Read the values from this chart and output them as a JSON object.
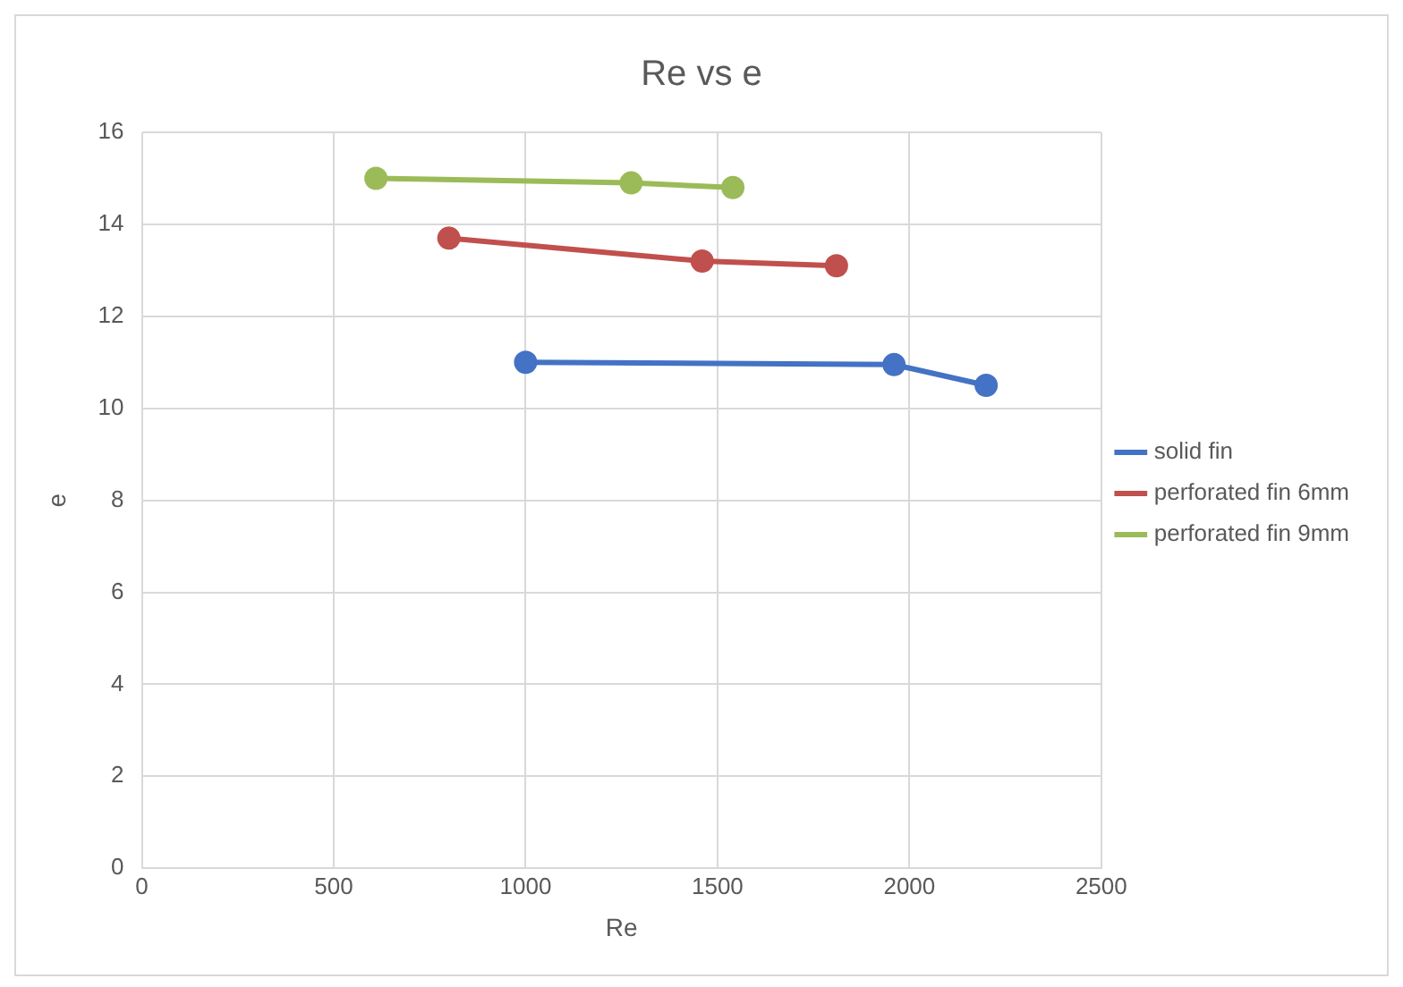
{
  "chart_data": {
    "type": "line",
    "title": "Re vs e",
    "xlabel": "Re",
    "ylabel": "e",
    "series": [
      {
        "name": "solid fin",
        "color": "#4472c4",
        "x": [
          1000,
          1960,
          2200
        ],
        "values": [
          11.0,
          10.95,
          10.5
        ]
      },
      {
        "name": "perforated fin 6mm",
        "color": "#c0504d",
        "x": [
          800,
          1460,
          1810
        ],
        "values": [
          13.7,
          13.2,
          13.1
        ]
      },
      {
        "name": "perforated fin 9mm",
        "color": "#9bbb59",
        "x": [
          610,
          1275,
          1540
        ],
        "values": [
          15.0,
          14.9,
          14.8
        ]
      }
    ],
    "xlim": [
      0,
      2500
    ],
    "xticks": [
      0,
      500,
      1000,
      1500,
      2000,
      2500
    ],
    "ylim": [
      0,
      16
    ],
    "yticks": [
      0,
      2,
      4,
      6,
      8,
      10,
      12,
      14,
      16
    ],
    "grid": true,
    "legend": "right",
    "marker": "circle",
    "line_style": "solid"
  }
}
